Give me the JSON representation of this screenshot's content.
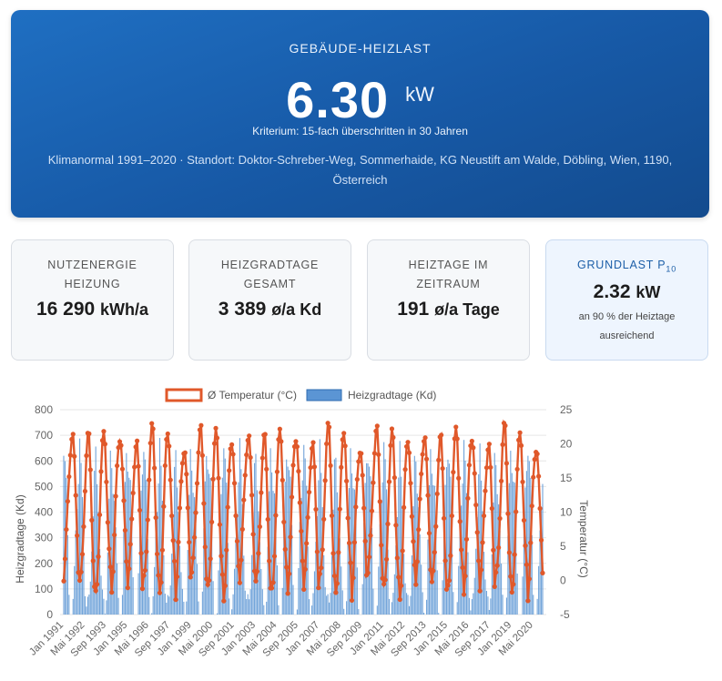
{
  "hero": {
    "title": "GEBÄUDE-HEIZLAST",
    "value": "6.30",
    "unit": "kW",
    "criterion": "Kriterium: 15-fach überschritten in 30 Jahren",
    "location_line1": "Klimanormal 1991–2020 · Standort: Doktor-Schreber-Weg, Sommerhaide, KG Neustift am Walde, Döbling, Wien, 1190,",
    "location_line2": "Österreich"
  },
  "cards": {
    "nutzenergie": {
      "label_line1": "NUTZENERGIE",
      "label_line2": "HEIZUNG",
      "value": "16 290",
      "unit": "kWh/a"
    },
    "heizgradtage": {
      "label_line1": "HEIZGRADTAGE",
      "label_line2": "GESAMT",
      "value": "3 389",
      "unit": "ø/a Kd"
    },
    "heiztage": {
      "label_line1": "HEIZTAGE IM",
      "label_line2": "ZEITRAUM",
      "value": "191",
      "unit": "ø/a Tage"
    },
    "grundlast": {
      "label": "GRUNDLAST P",
      "label_sub": "10",
      "value": "2.32",
      "unit": "kW",
      "note_line1": "an 90 % der Heiztage",
      "note_line2": "ausreichend"
    }
  },
  "colors": {
    "hero_bg": "#1a62b3",
    "temperature_line": "#e0582a",
    "bars": "#4a86c7",
    "accent_text": "#1d5fa8"
  },
  "chart_data": {
    "type": "bar+line",
    "legend": [
      "Ø Temperatur (°C)",
      "Heizgradtage (Kd)"
    ],
    "legend_position": "top",
    "ylabel_left": "Heizgradtage (Kd)",
    "ylabel_right": "Temperatur (°C)",
    "ylim_left": [
      0,
      800
    ],
    "ylim_right": [
      -5,
      25
    ],
    "yticks_left": [
      "0",
      "100",
      "200",
      "300",
      "400",
      "500",
      "600",
      "700",
      "800"
    ],
    "yticks_right": [
      "-5",
      "0",
      "5",
      "10",
      "15",
      "20",
      "25"
    ],
    "grid": true,
    "xtick_labels": [
      "Jan 1991",
      "Mai 1992",
      "Sep 1993",
      "Jan 1995",
      "Mai 1996",
      "Sep 1997",
      "Jan 1999",
      "Mai 2000",
      "Sep 2001",
      "Jan 2003",
      "Mai 2004",
      "Sep 2005",
      "Jan 2007",
      "Mai 2008",
      "Sep 2009",
      "Jan 2011",
      "Mai 2012",
      "Sep 2013",
      "Jan 2015",
      "Mai 2016",
      "Sep 2017",
      "Jan 2019",
      "Mai 2020"
    ],
    "x_range": [
      "Jan 1991",
      "Dez 2020"
    ],
    "monthly_pattern_note_free": true,
    "typical_monthly_temperature": [
      -1,
      1,
      5,
      10,
      15,
      19,
      21,
      20.5,
      16,
      10,
      5,
      1
    ],
    "typical_monthly_heizgradtage": [
      620,
      540,
      470,
      300,
      130,
      30,
      10,
      15,
      120,
      300,
      450,
      580
    ]
  }
}
